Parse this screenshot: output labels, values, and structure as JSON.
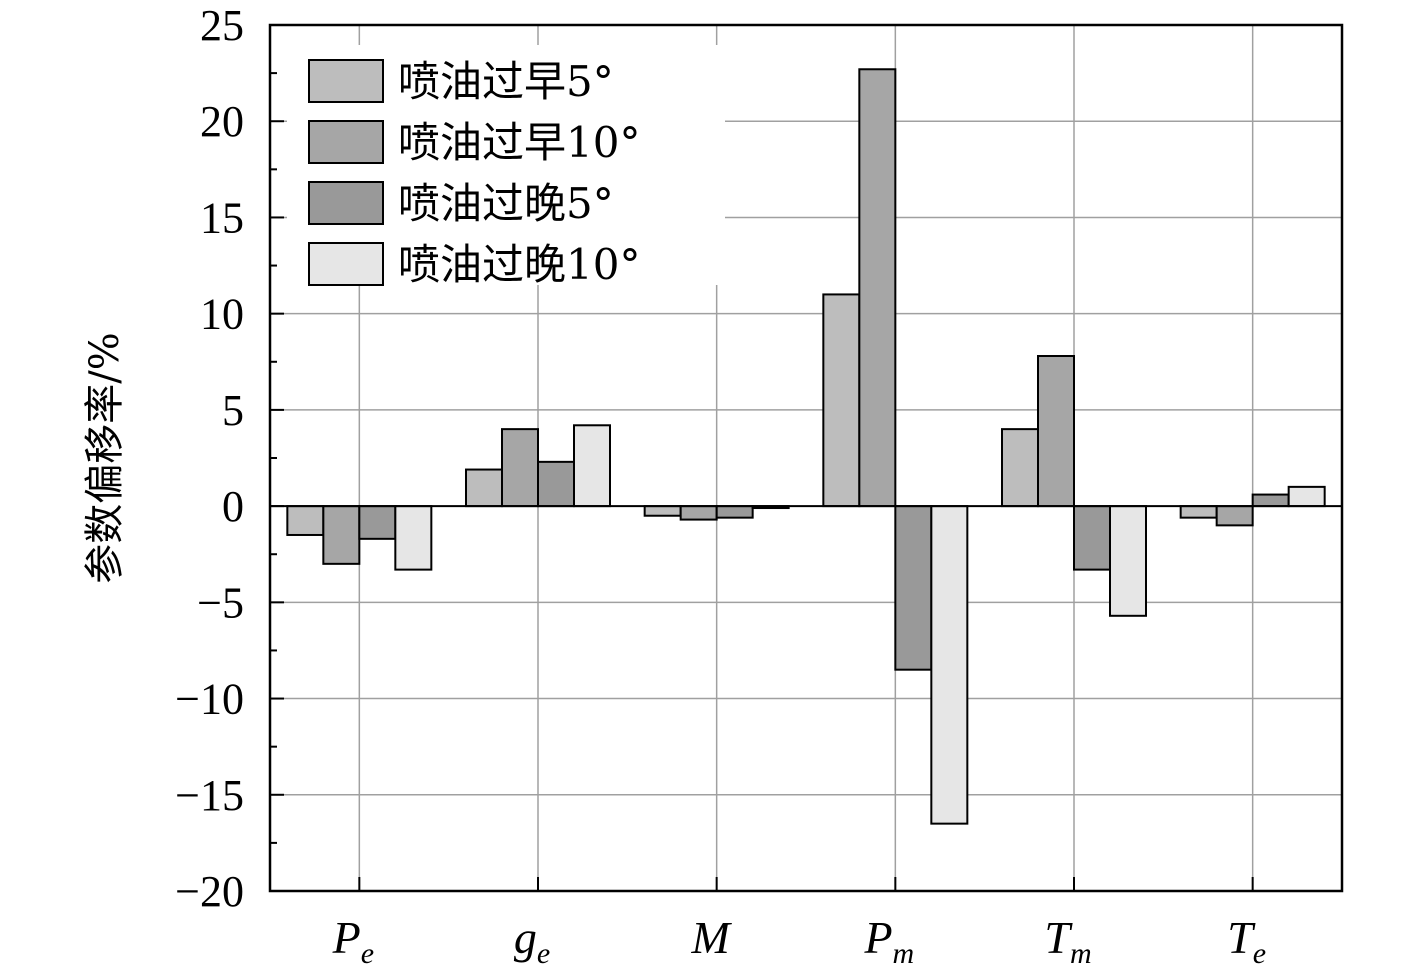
{
  "chart_data": {
    "type": "bar",
    "categories": [
      {
        "main": "P",
        "sub": "e"
      },
      {
        "main": "g",
        "sub": "e"
      },
      {
        "main": "M",
        "sub": ""
      },
      {
        "main": "P",
        "sub": "m"
      },
      {
        "main": "T",
        "sub": "m"
      },
      {
        "main": "T",
        "sub": "e"
      }
    ],
    "series": [
      {
        "name": "喷油过早5°",
        "color": "#bdbdbd",
        "values": [
          -1.5,
          1.9,
          -0.5,
          11.0,
          4.0,
          -0.6
        ]
      },
      {
        "name": "喷油过早10°",
        "color": "#a6a6a6",
        "values": [
          -3.0,
          4.0,
          -0.7,
          22.7,
          7.8,
          -1.0
        ]
      },
      {
        "name": "喷油过晚5°",
        "color": "#999999",
        "values": [
          -1.7,
          2.3,
          -0.6,
          -8.5,
          -3.3,
          0.6
        ]
      },
      {
        "name": "喷油过晚10°",
        "color": "#e6e6e6",
        "values": [
          -3.3,
          4.2,
          -0.1,
          -16.5,
          -5.7,
          1.0
        ]
      }
    ],
    "title": "",
    "xlabel": "",
    "ylabel": "参数偏移率/%",
    "ylim": [
      -20,
      25
    ],
    "yticks": [
      25,
      20,
      15,
      10,
      5,
      0,
      -5,
      -10,
      -15,
      -20
    ],
    "ytick_labels": [
      "25",
      "20",
      "15",
      "10",
      "5",
      "0",
      "−5",
      "−10",
      "−15",
      "−20"
    ],
    "grid": true,
    "legend_position": "top-left"
  }
}
